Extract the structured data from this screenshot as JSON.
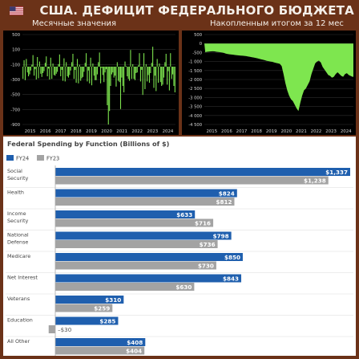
{
  "header": {
    "title": "США. ДЕФИЦИТ ФЕДЕРАЛЬНОГО БЮДЖЕТА",
    "flag_icon": "us-flag-icon"
  },
  "colors": {
    "background": "#6b3218",
    "panel": "#000000",
    "green": "#7ee64f",
    "fy24": "#1f5fae",
    "fy23": "#a3a3a3"
  },
  "chart_data": [
    {
      "type": "bar",
      "title": "Месячные значения",
      "x_labels": [
        "2015",
        "2016",
        "2017",
        "2018",
        "2019",
        "2020",
        "2021",
        "2022",
        "2023",
        "2024"
      ],
      "y_labels": [
        "500",
        "100",
        "-100",
        "-300",
        "-500",
        "-700",
        "-900"
      ],
      "ylim": [
        -900,
        500
      ],
      "values": [
        -190,
        100,
        -210,
        120,
        -90,
        -150,
        -120,
        -60,
        30,
        180,
        -140,
        -40,
        -200,
        150,
        -180,
        80,
        -110,
        -160,
        -100,
        -70,
        60,
        160,
        -150,
        -30,
        -200,
        140,
        -190,
        50,
        -130,
        -140,
        -110,
        -80,
        40,
        190,
        -150,
        -50,
        -220,
        130,
        -230,
        70,
        -150,
        -170,
        -130,
        -60,
        70,
        200,
        -190,
        -50,
        -250,
        120,
        -260,
        30,
        -220,
        -180,
        -160,
        -80,
        60,
        210,
        -230,
        -60,
        -260,
        140,
        -290,
        50,
        -140,
        -210,
        -210,
        -120,
        70,
        220,
        -260,
        -20,
        -130,
        -240,
        -90,
        -40,
        -600,
        -900,
        -690,
        -300,
        -120,
        -90,
        -170,
        -140,
        -310,
        70,
        -220,
        -240,
        -660,
        -170,
        -300,
        -400,
        80,
        10,
        -150,
        -190,
        -220,
        260,
        -190,
        40,
        -190,
        -210,
        -100,
        -90,
        20,
        210,
        -230,
        -50,
        -440,
        210,
        -350,
        40,
        -230,
        -130,
        -250,
        -100,
        60,
        310,
        -330,
        -140,
        -380,
        120,
        -250,
        50,
        -240,
        -300,
        -280,
        -170,
        70,
        200,
        -280,
        -70,
        -370,
        210,
        -190,
        -120,
        -300,
        -400
      ],
      "xlabel": "",
      "ylabel": "",
      "grid": true
    },
    {
      "type": "area",
      "title": "Накопленным итогом за 12 мес",
      "x_labels": [
        "2015",
        "2016",
        "2017",
        "2018",
        "2019",
        "2020",
        "2021",
        "2022",
        "2023",
        "2024"
      ],
      "y_labels": [
        "500",
        "0",
        "-500",
        "-1 000",
        "-1 500",
        "-2 000",
        "-2 500",
        "-3 000",
        "-3 500",
        "-4 000",
        "-4 500"
      ],
      "ylim": [
        -4500,
        500
      ],
      "values": [
        -480,
        -460,
        -450,
        -440,
        -430,
        -440,
        -460,
        -470,
        -480,
        -500,
        -520,
        -560,
        -580,
        -600,
        -610,
        -620,
        -640,
        -650,
        -660,
        -670,
        -680,
        -690,
        -700,
        -720,
        -740,
        -760,
        -780,
        -800,
        -820,
        -850,
        -880,
        -900,
        -930,
        -960,
        -980,
        -1000,
        -1020,
        -1050,
        -1080,
        -1100,
        -1130,
        -1250,
        -1700,
        -2200,
        -2600,
        -2900,
        -3100,
        -3200,
        -3400,
        -3600,
        -3750,
        -3300,
        -2900,
        -2600,
        -2500,
        -2300,
        -2100,
        -1700,
        -1400,
        -1100,
        -1000,
        -950,
        -1050,
        -1300,
        -1450,
        -1600,
        -1750,
        -1800,
        -1900,
        -1850,
        -1700,
        -1600,
        -1700,
        -1800,
        -1850,
        -1700,
        -1650,
        -1750,
        -1800,
        -1850
      ],
      "xlabel": "",
      "ylabel": "",
      "grid": true
    },
    {
      "type": "bar",
      "title": "Federal Spending by Function (Billions of $)",
      "categories": [
        "Social Security",
        "Health",
        "Income Security",
        "National Defense",
        "Medicare",
        "Net Interest",
        "Veterans",
        "Education",
        "All Other"
      ],
      "category_lines": [
        [
          "Social",
          "Security"
        ],
        [
          "Health"
        ],
        [
          "Income",
          "Security"
        ],
        [
          "National",
          "Defense"
        ],
        [
          "Medicare"
        ],
        [
          "Net Interest"
        ],
        [
          "Veterans"
        ],
        [
          "Education"
        ],
        [
          "All Other"
        ]
      ],
      "series": [
        {
          "name": "FY24",
          "values": [
            1337,
            824,
            633,
            798,
            850,
            843,
            310,
            285,
            408
          ],
          "labels": [
            "$1,337",
            "$824",
            "$633",
            "$798",
            "$850",
            "$843",
            "$310",
            "$285",
            "$408"
          ]
        },
        {
          "name": "FY23",
          "values": [
            1238,
            812,
            716,
            736,
            730,
            630,
            259,
            -30,
            404
          ],
          "labels": [
            "$1,238",
            "$812",
            "$716",
            "$736",
            "$730",
            "$630",
            "$259",
            "–$30",
            "$404"
          ]
        }
      ],
      "xlim": [
        -30,
        1337
      ],
      "legend": "top-left"
    }
  ]
}
